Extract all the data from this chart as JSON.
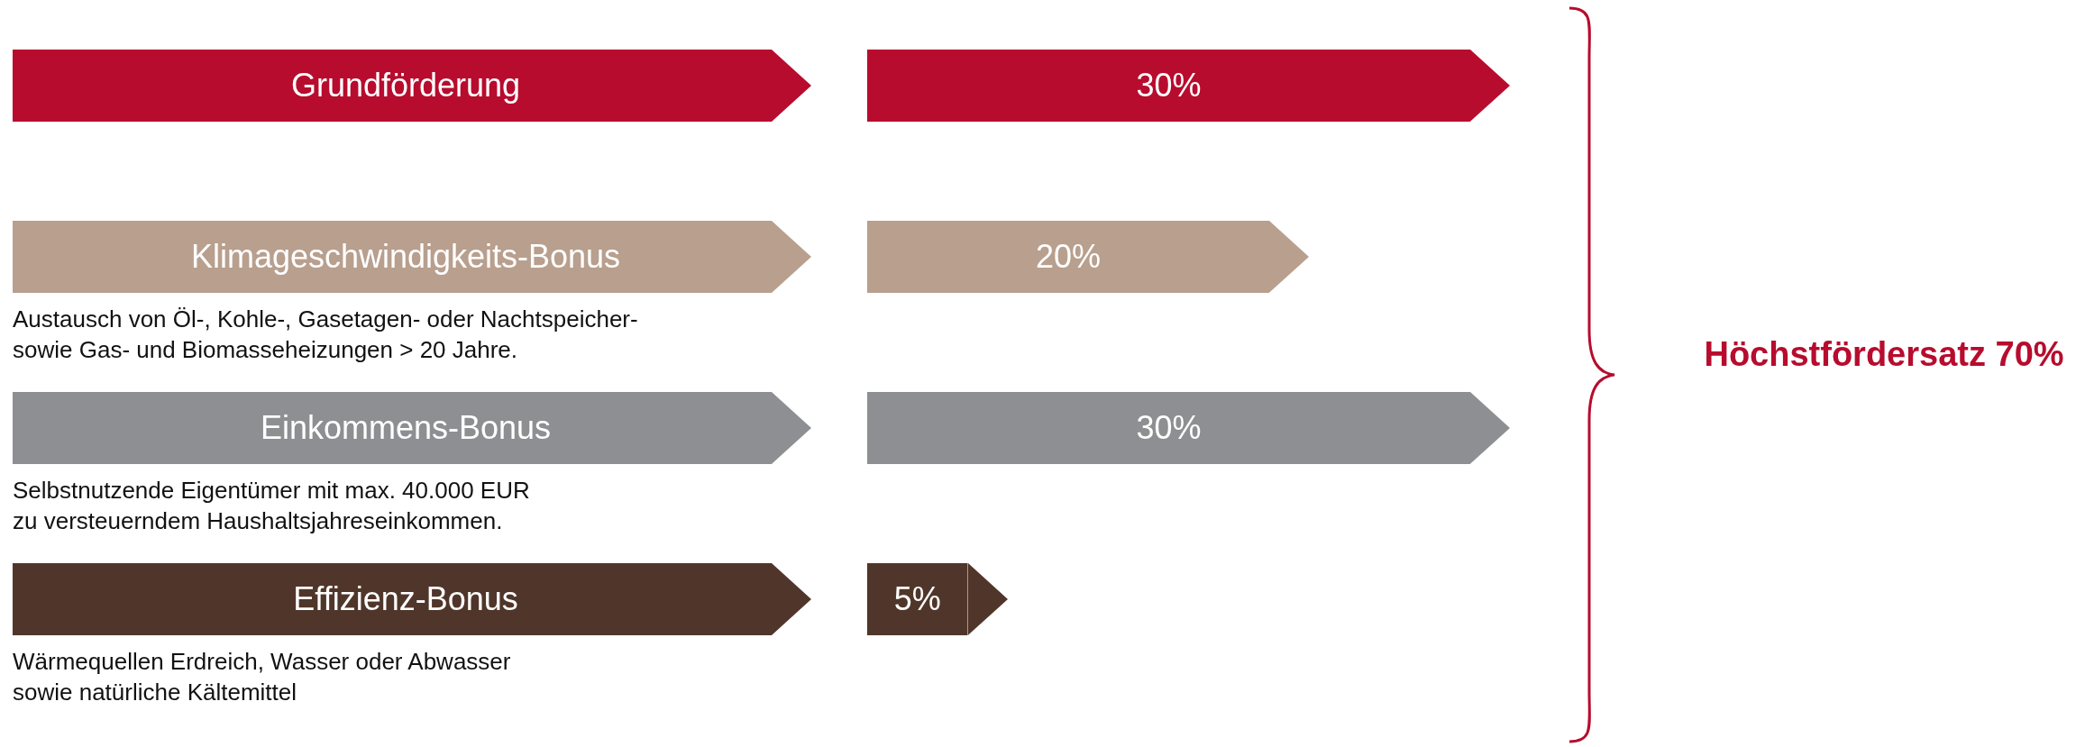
{
  "chart_data": {
    "type": "bar",
    "orientation": "horizontal",
    "categories": [
      "Grundförderung",
      "Klimageschwindigkeits-Bonus",
      "Einkommens-Bonus",
      "Effizienz-Bonus"
    ],
    "values": [
      30,
      20,
      30,
      5
    ],
    "colors": [
      "#b70c2e",
      "#b89f8e",
      "#8e8f92",
      "#50362a"
    ],
    "value_labels": [
      "30%",
      "20%",
      "30%",
      "5%"
    ],
    "legend": false,
    "annotations": [
      "Austausch von Öl-, Kohle-, Gasetagen- oder Nachtspeicher-\nsowie Gas- und Biomasseheizungen > 20 Jahre.",
      "Selbstnutzende Eigentümer mit max. 40.000 EUR\nzu versteuerndem Haushaltsjahreseinkommen.",
      "Wärmequellen Erdreich, Wasser oder Abwasser\nsowie natürliche Kältemittel",
      "Höchstfördersatz 70%"
    ]
  }
}
